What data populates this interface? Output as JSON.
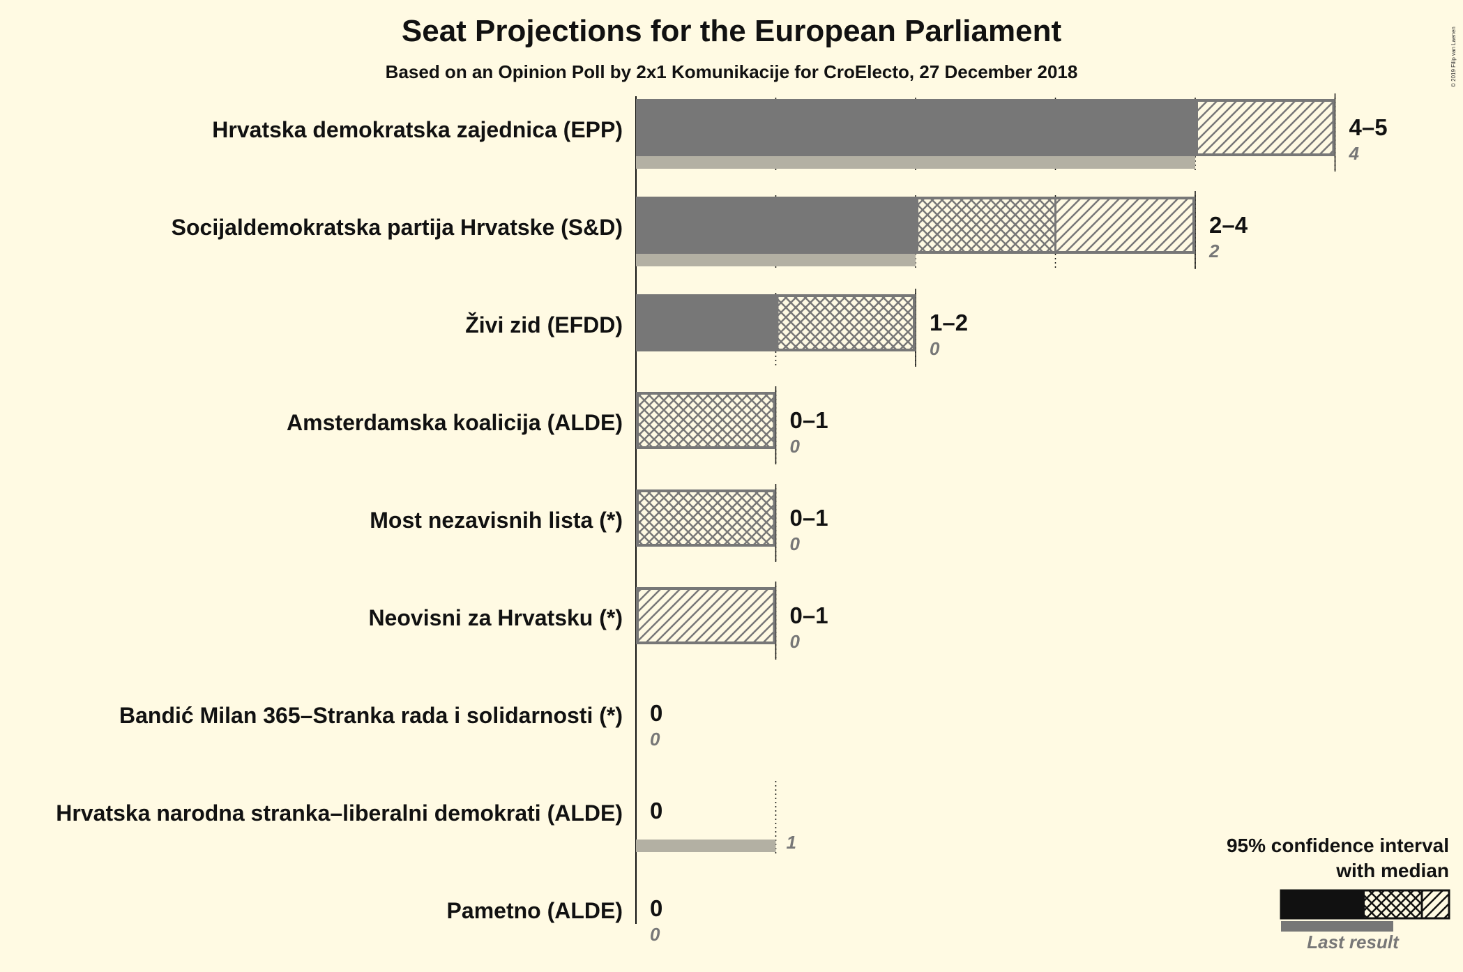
{
  "title": "Seat Projections for the European Parliament",
  "subtitle": "Based on an Opinion Poll by 2x1 Komunikacije for CroElecto, 27 December 2018",
  "copyright": "© 2019 Filip van Laenen",
  "legend": {
    "ci_label_line1": "95% confidence interval",
    "ci_label_line2": "with median",
    "last_result_label": "Last result"
  },
  "colors": {
    "background": "#FFFAE3",
    "solid_bar": "#777777",
    "last_result_bar": "#B3B0A3",
    "hatch_stroke": "#777777",
    "legend_solid": "#111111"
  },
  "chart_data": {
    "type": "bar",
    "orientation": "horizontal",
    "x_range": [
      0,
      5
    ],
    "parties": [
      {
        "name": "Hrvatska demokratska zajednica (EPP)",
        "ci_low": 4,
        "median": 4,
        "ci_high": 5,
        "range_label": "4–5",
        "last_result": 4,
        "last_label": "4"
      },
      {
        "name": "Socijaldemokratska partija Hrvatske (S&D)",
        "ci_low": 2,
        "median": 3,
        "ci_high": 4,
        "range_label": "2–4",
        "last_result": 2,
        "last_label": "2"
      },
      {
        "name": "Živi zid (EFDD)",
        "ci_low": 1,
        "median": 2,
        "ci_high": 2,
        "range_label": "1–2",
        "last_result": 0,
        "last_label": "0"
      },
      {
        "name": "Amsterdamska koalicija (ALDE)",
        "ci_low": 0,
        "median": 1,
        "ci_high": 1,
        "range_label": "0–1",
        "last_result": 0,
        "last_label": "0"
      },
      {
        "name": "Most nezavisnih lista (*)",
        "ci_low": 0,
        "median": 1,
        "ci_high": 1,
        "range_label": "0–1",
        "last_result": 0,
        "last_label": "0"
      },
      {
        "name": "Neovisni za Hrvatsku (*)",
        "ci_low": 0,
        "median": 0,
        "ci_high": 1,
        "range_label": "0–1",
        "last_result": 0,
        "last_label": "0"
      },
      {
        "name": "Bandić Milan 365–Stranka rada i solidarnosti (*)",
        "ci_low": 0,
        "median": 0,
        "ci_high": 0,
        "range_label": "0",
        "last_result": 0,
        "last_label": "0"
      },
      {
        "name": "Hrvatska narodna stranka–liberalni demokrati (ALDE)",
        "ci_low": 0,
        "median": 0,
        "ci_high": 0,
        "range_label": "0",
        "last_result": 1,
        "last_label": "1"
      },
      {
        "name": "Pametno (ALDE)",
        "ci_low": 0,
        "median": 0,
        "ci_high": 0,
        "range_label": "0",
        "last_result": 0,
        "last_label": "0"
      }
    ]
  }
}
